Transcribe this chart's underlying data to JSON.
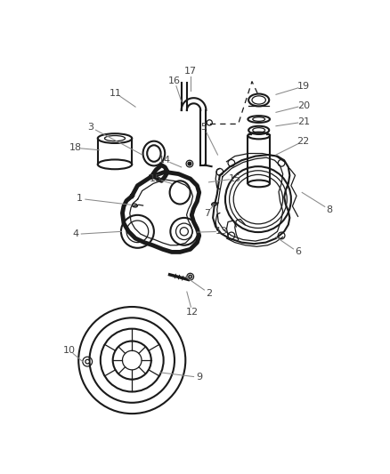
{
  "bg_color": "#ffffff",
  "line_color": "#1a1a1a",
  "label_color": "#444444",
  "fig_width": 4.38,
  "fig_height": 5.33,
  "dpi": 100,
  "gasket_color": "#111111",
  "cover_color": "#222222"
}
